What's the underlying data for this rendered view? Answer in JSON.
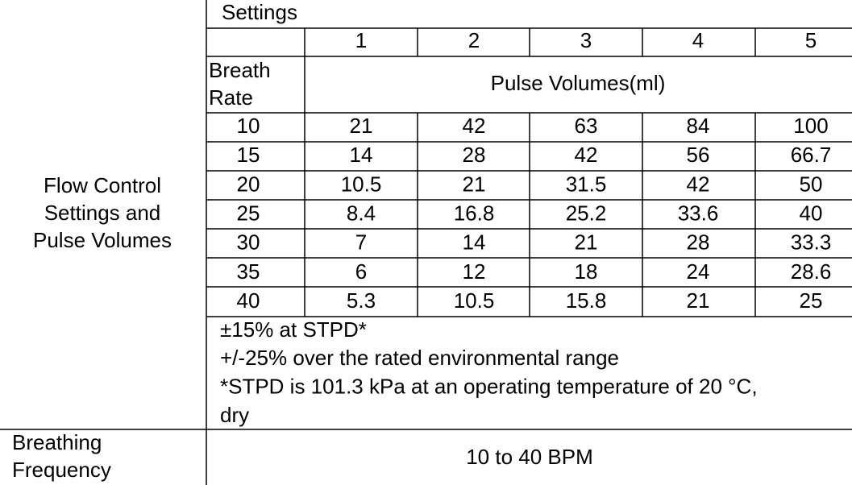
{
  "row_label": [
    "Flow Control",
    "Settings and",
    "Pulse Volumes"
  ],
  "settings_header": "Settings",
  "settings": [
    1,
    2,
    3,
    4,
    5
  ],
  "breath_rate_header": [
    "Breath",
    "Rate"
  ],
  "pulse_volumes_header": "Pulse Volumes(ml)",
  "rows": [
    {
      "breath_rate": 10,
      "values": [
        21,
        42,
        63,
        84,
        100
      ]
    },
    {
      "breath_rate": 15,
      "values": [
        14,
        28,
        42,
        56,
        66.7
      ]
    },
    {
      "breath_rate": 20,
      "values": [
        10.5,
        21,
        31.5,
        42,
        50
      ]
    },
    {
      "breath_rate": 25,
      "values": [
        8.4,
        16.8,
        25.2,
        33.6,
        40
      ]
    },
    {
      "breath_rate": 30,
      "values": [
        7,
        14,
        21,
        28,
        33.3
      ]
    },
    {
      "breath_rate": 35,
      "values": [
        6,
        12,
        18,
        24,
        28.6
      ]
    },
    {
      "breath_rate": 40,
      "values": [
        5.3,
        10.5,
        15.8,
        21,
        25
      ]
    }
  ],
  "notes": [
    "±15% at STPD*",
    "+/-25% over the rated environmental range",
    "*STPD is 101.3 kPa at an operating temperature of 20 °C,",
    "dry"
  ],
  "breathing_frequency": {
    "label": [
      "Breathing",
      "Frequency"
    ],
    "value": "10 to 40 BPM"
  }
}
